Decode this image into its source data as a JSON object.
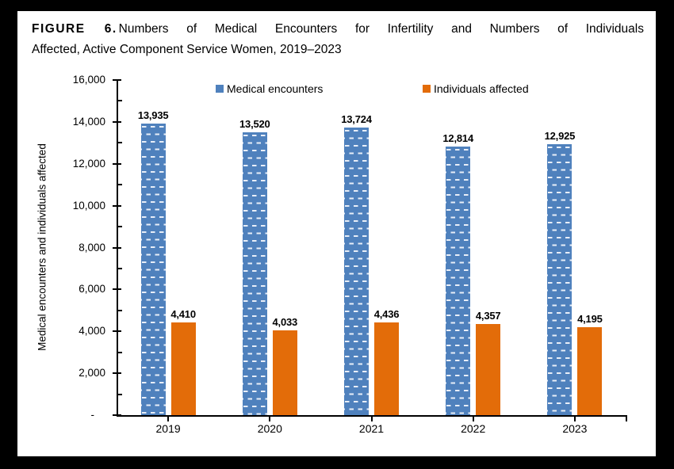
{
  "figure": {
    "title_bold": "FIGURE 6.",
    "title_line1_rest": "Numbers of Medical Encounters for Infertility and Numbers of Individuals",
    "title_line2": "Affected, Active Component Service Women, 2019–2023"
  },
  "chart_data": {
    "type": "bar",
    "title": "FIGURE 6. Numbers of Medical Encounters for Infertility and Numbers of Individuals Affected, Active Component Service Women, 2019–2023",
    "categories": [
      "2019",
      "2020",
      "2021",
      "2022",
      "2023"
    ],
    "series": [
      {
        "name": "Medical encounters",
        "color": "#4F81BD",
        "pattern": "dashed-horizontal",
        "dash_color": "#E8EEF8",
        "values": [
          13935,
          13520,
          13724,
          12814,
          12925
        ],
        "data_labels": [
          "13,935",
          "13,520",
          "13,724",
          "12,814",
          "12,925"
        ]
      },
      {
        "name": "Individuals affected",
        "color": "#E36C09",
        "pattern": "solid",
        "values": [
          4410,
          4033,
          4436,
          4357,
          4195
        ],
        "data_labels": [
          "4,410",
          "4,033",
          "4,436",
          "4,357",
          "4,195"
        ]
      }
    ],
    "xlabel": "",
    "ylabel": "Medical encounters and individuals affected",
    "ylim": [
      0,
      16000
    ],
    "ytick_interval": 2000,
    "ytick_minor_interval": 1000,
    "ytick_labels": [
      "-",
      "2,000",
      "4,000",
      "6,000",
      "8,000",
      "10,000",
      "12,000",
      "14,000",
      "16,000"
    ],
    "grid": false,
    "legend_position": "top-inside",
    "axis_color": "#000000"
  }
}
